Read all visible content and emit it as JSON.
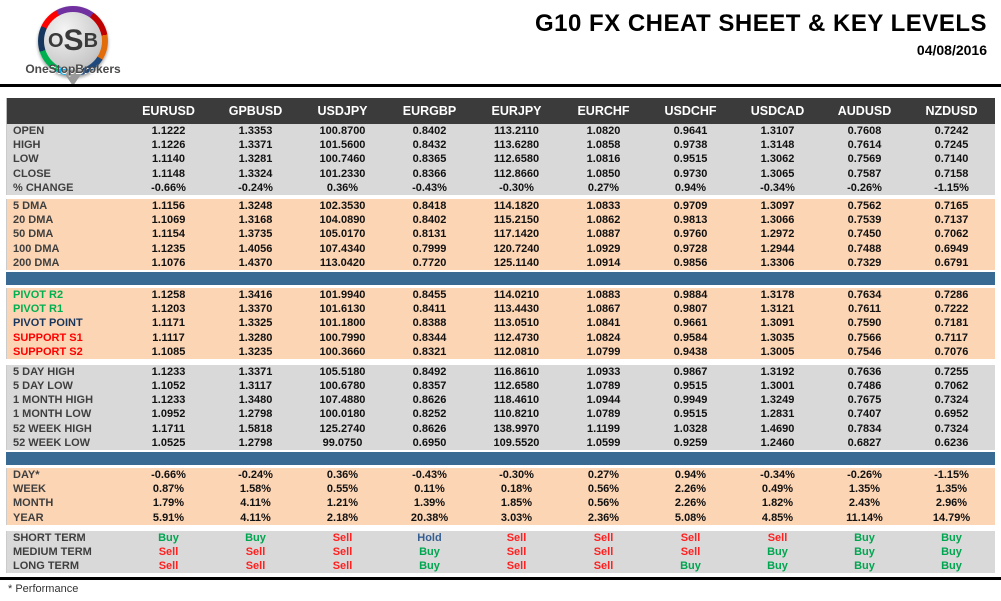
{
  "header": {
    "logo_text": "OSB",
    "logo_subtext": "OneStopBrokers",
    "title": "G10 FX CHEAT SHEET & KEY LEVELS",
    "date": "04/08/2016"
  },
  "footer": {
    "note": "* Performance"
  },
  "colors": {
    "header_bg": "#3b3b3b",
    "gray_band": "#d9d9d9",
    "peach_band": "#fcd5b4",
    "blue_divider": "#396a93",
    "buy": "#00a550",
    "sell": "#ff2020",
    "hold": "#365f91",
    "pivot_resistance_label": "#00b050",
    "pivot_point_label": "#17365d",
    "support_label": "#ff0000"
  },
  "chart_data": {
    "type": "table",
    "title": "G10 FX CHEAT SHEET & KEY LEVELS",
    "date": "04/08/2016",
    "columns": [
      "EURUSD",
      "GPBUSD",
      "USDJPY",
      "EURGBP",
      "EURJPY",
      "EURCHF",
      "USDCHF",
      "USDCAD",
      "AUDUSD",
      "NZDUSD"
    ],
    "sections": [
      {
        "name": "ohlc",
        "band": "gray",
        "divider_after": "gap",
        "rows": [
          {
            "label": "OPEN",
            "values": [
              "1.1222",
              "1.3353",
              "100.8700",
              "0.8402",
              "113.2110",
              "1.0820",
              "0.9641",
              "1.3107",
              "0.7608",
              "0.7242"
            ]
          },
          {
            "label": "HIGH",
            "values": [
              "1.1226",
              "1.3371",
              "101.5600",
              "0.8432",
              "113.6280",
              "1.0858",
              "0.9738",
              "1.3148",
              "0.7614",
              "0.7245"
            ]
          },
          {
            "label": "LOW",
            "values": [
              "1.1140",
              "1.3281",
              "100.7460",
              "0.8365",
              "112.6580",
              "1.0816",
              "0.9515",
              "1.3062",
              "0.7569",
              "0.7140"
            ]
          },
          {
            "label": "CLOSE",
            "values": [
              "1.1148",
              "1.3324",
              "101.2330",
              "0.8366",
              "112.8660",
              "1.0850",
              "0.9730",
              "1.3065",
              "0.7587",
              "0.7158"
            ]
          },
          {
            "label": "% CHANGE",
            "values": [
              "-0.66%",
              "-0.24%",
              "0.36%",
              "-0.43%",
              "-0.30%",
              "0.27%",
              "0.94%",
              "-0.34%",
              "-0.26%",
              "-1.15%"
            ]
          }
        ]
      },
      {
        "name": "dma",
        "band": "peach",
        "divider_after": "blue",
        "rows": [
          {
            "label": "5 DMA",
            "values": [
              "1.1156",
              "1.3248",
              "102.3530",
              "0.8418",
              "114.1820",
              "1.0833",
              "0.9709",
              "1.3097",
              "0.7562",
              "0.7165"
            ]
          },
          {
            "label": "20 DMA",
            "values": [
              "1.1069",
              "1.3168",
              "104.0890",
              "0.8402",
              "115.2150",
              "1.0862",
              "0.9813",
              "1.3066",
              "0.7539",
              "0.7137"
            ]
          },
          {
            "label": "50 DMA",
            "values": [
              "1.1154",
              "1.3735",
              "105.0170",
              "0.8131",
              "117.1420",
              "1.0887",
              "0.9760",
              "1.2972",
              "0.7450",
              "0.7062"
            ]
          },
          {
            "label": "100 DMA",
            "values": [
              "1.1235",
              "1.4056",
              "107.4340",
              "0.7999",
              "120.7240",
              "1.0929",
              "0.9728",
              "1.2944",
              "0.7488",
              "0.6949"
            ]
          },
          {
            "label": "200 DMA",
            "values": [
              "1.1076",
              "1.4370",
              "113.0420",
              "0.7720",
              "125.1140",
              "1.0914",
              "0.9856",
              "1.3306",
              "0.7329",
              "0.6791"
            ]
          }
        ]
      },
      {
        "name": "pivots",
        "band": "peach",
        "divider_after": "gap6",
        "rows": [
          {
            "label": "PIVOT R2",
            "label_color": "#00b050",
            "values": [
              "1.1258",
              "1.3416",
              "101.9940",
              "0.8455",
              "114.0210",
              "1.0883",
              "0.9884",
              "1.3178",
              "0.7634",
              "0.7286"
            ]
          },
          {
            "label": "PIVOT R1",
            "label_color": "#00b050",
            "values": [
              "1.1203",
              "1.3370",
              "101.6130",
              "0.8411",
              "113.4430",
              "1.0867",
              "0.9807",
              "1.3121",
              "0.7611",
              "0.7222"
            ]
          },
          {
            "label": "PIVOT POINT",
            "label_color": "#17365d",
            "values": [
              "1.1171",
              "1.3325",
              "101.1800",
              "0.8388",
              "113.0510",
              "1.0841",
              "0.9661",
              "1.3091",
              "0.7590",
              "0.7181"
            ]
          },
          {
            "label": "SUPPORT S1",
            "label_color": "#ff0000",
            "values": [
              "1.1117",
              "1.3280",
              "100.7990",
              "0.8344",
              "112.4730",
              "1.0824",
              "0.9584",
              "1.3035",
              "0.7566",
              "0.7117"
            ]
          },
          {
            "label": "SUPPORT S2",
            "label_color": "#ff0000",
            "values": [
              "1.1085",
              "1.3235",
              "100.3660",
              "0.8321",
              "112.0810",
              "1.0799",
              "0.9438",
              "1.3005",
              "0.7546",
              "0.7076"
            ]
          }
        ]
      },
      {
        "name": "ranges",
        "band": "gray",
        "divider_after": "blue",
        "rows": [
          {
            "label": "5 DAY HIGH",
            "values": [
              "1.1233",
              "1.3371",
              "105.5180",
              "0.8492",
              "116.8610",
              "1.0933",
              "0.9867",
              "1.3192",
              "0.7636",
              "0.7255"
            ]
          },
          {
            "label": "5 DAY LOW",
            "values": [
              "1.1052",
              "1.3117",
              "100.6780",
              "0.8357",
              "112.6580",
              "1.0789",
              "0.9515",
              "1.3001",
              "0.7486",
              "0.7062"
            ]
          },
          {
            "label": "1 MONTH HIGH",
            "values": [
              "1.1233",
              "1.3480",
              "107.4880",
              "0.8626",
              "118.4610",
              "1.0944",
              "0.9949",
              "1.3249",
              "0.7675",
              "0.7324"
            ]
          },
          {
            "label": "1 MONTH LOW",
            "values": [
              "1.0952",
              "1.2798",
              "100.0180",
              "0.8252",
              "110.8210",
              "1.0789",
              "0.9515",
              "1.2831",
              "0.7407",
              "0.6952"
            ]
          },
          {
            "label": "52 WEEK HIGH",
            "values": [
              "1.1711",
              "1.5818",
              "125.2740",
              "0.8626",
              "138.9970",
              "1.1199",
              "1.0328",
              "1.4690",
              "0.7834",
              "0.7324"
            ]
          },
          {
            "label": "52 WEEK LOW",
            "values": [
              "1.0525",
              "1.2798",
              "99.0750",
              "0.6950",
              "109.5520",
              "1.0599",
              "0.9259",
              "1.2460",
              "0.6827",
              "0.6236"
            ]
          }
        ]
      },
      {
        "name": "performance",
        "band": "peach",
        "divider_after": "gap6",
        "rows": [
          {
            "label": "DAY*",
            "values": [
              "-0.66%",
              "-0.24%",
              "0.36%",
              "-0.43%",
              "-0.30%",
              "0.27%",
              "0.94%",
              "-0.34%",
              "-0.26%",
              "-1.15%"
            ]
          },
          {
            "label": "WEEK",
            "values": [
              "0.87%",
              "1.58%",
              "0.55%",
              "0.11%",
              "0.18%",
              "0.56%",
              "2.26%",
              "0.49%",
              "1.35%",
              "1.35%"
            ]
          },
          {
            "label": "MONTH",
            "values": [
              "1.79%",
              "4.11%",
              "1.21%",
              "1.39%",
              "1.85%",
              "0.56%",
              "2.26%",
              "1.82%",
              "2.43%",
              "2.96%"
            ]
          },
          {
            "label": "YEAR",
            "values": [
              "5.91%",
              "4.11%",
              "2.18%",
              "20.38%",
              "3.03%",
              "2.36%",
              "5.08%",
              "4.85%",
              "11.14%",
              "14.79%"
            ]
          }
        ]
      },
      {
        "name": "signals",
        "band": "gray",
        "divider_after": "none",
        "color_values": true,
        "rows": [
          {
            "label": "SHORT TERM",
            "values": [
              "Buy",
              "Buy",
              "Sell",
              "Hold",
              "Sell",
              "Sell",
              "Sell",
              "Sell",
              "Buy",
              "Buy"
            ]
          },
          {
            "label": "MEDIUM TERM",
            "values": [
              "Sell",
              "Sell",
              "Sell",
              "Buy",
              "Sell",
              "Sell",
              "Sell",
              "Buy",
              "Buy",
              "Buy"
            ]
          },
          {
            "label": "LONG TERM",
            "values": [
              "Sell",
              "Sell",
              "Sell",
              "Buy",
              "Sell",
              "Sell",
              "Buy",
              "Buy",
              "Buy",
              "Buy"
            ]
          }
        ]
      }
    ]
  }
}
